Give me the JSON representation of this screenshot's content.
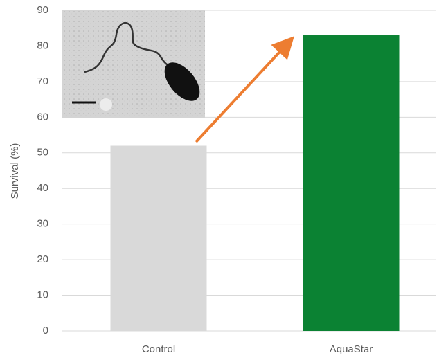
{
  "chart_data": {
    "type": "bar",
    "y_label": "Survival (%)",
    "categories": [
      "Control",
      "AquaStar"
    ],
    "values": [
      52,
      83
    ],
    "colors": [
      "#d9d9d9",
      "#0b8233"
    ],
    "ylim": [
      0,
      90
    ],
    "yticks": [
      0,
      10,
      20,
      30,
      40,
      50,
      60,
      70,
      80,
      90
    ],
    "grid": true
  }
}
